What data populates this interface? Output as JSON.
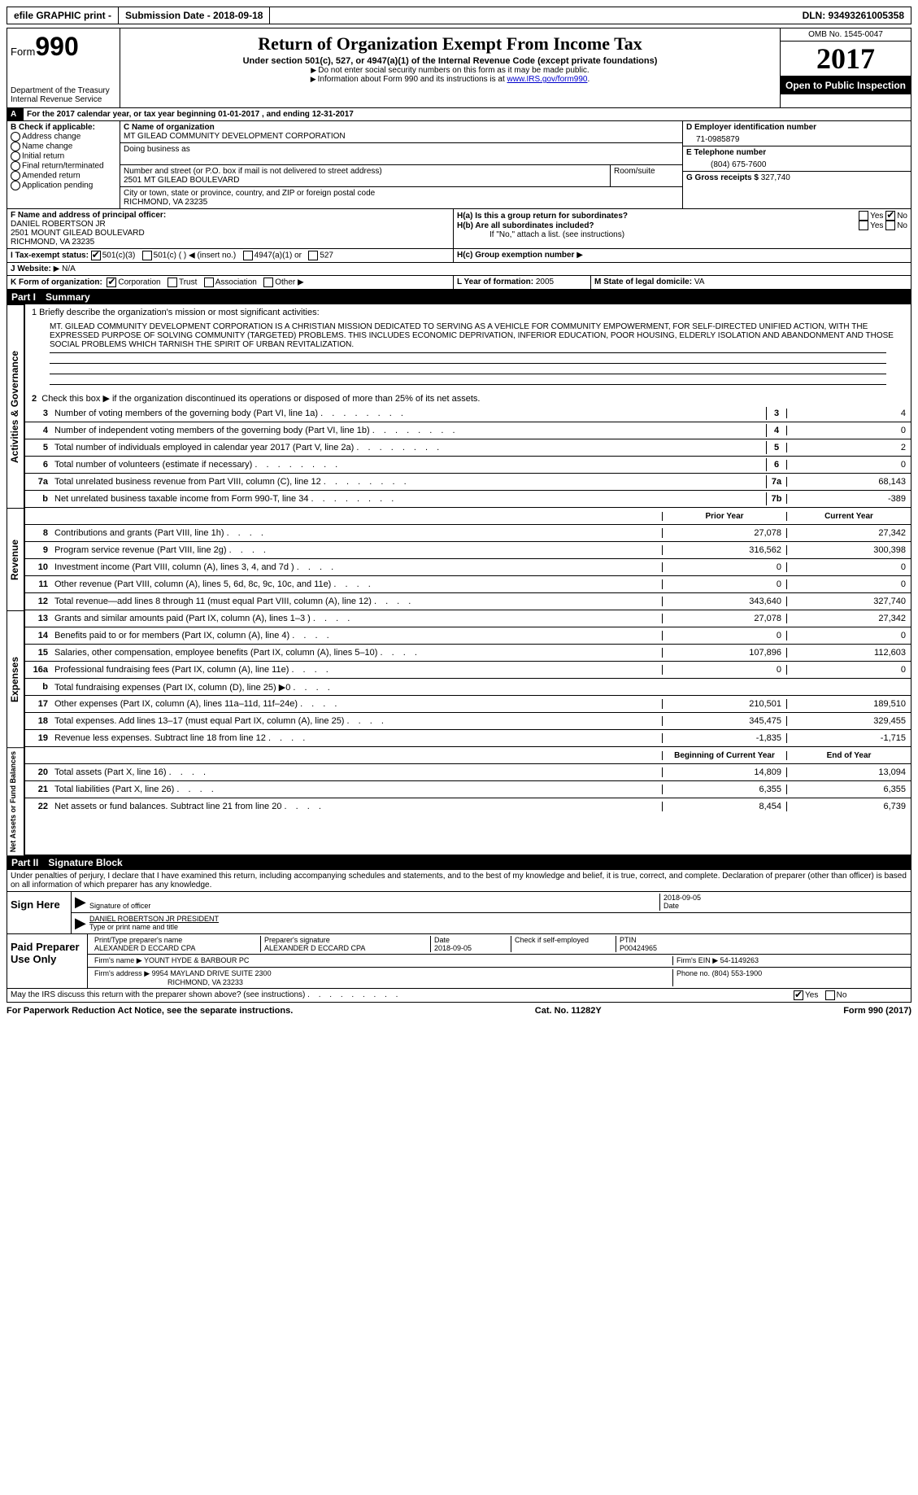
{
  "topbar": {
    "efile": "efile GRAPHIC print -",
    "submission_label": "Submission Date - 2018-09-18",
    "dln": "DLN: 93493261005358"
  },
  "header": {
    "form_label": "Form",
    "form_number": "990",
    "dept": "Department of the Treasury",
    "irs": "Internal Revenue Service",
    "title": "Return of Organization Exempt From Income Tax",
    "subtitle": "Under section 501(c), 527, or 4947(a)(1) of the Internal Revenue Code (except private foundations)",
    "note1": "Do not enter social security numbers on this form as it may be made public.",
    "note2_pre": "Information about Form 990 and its instructions is at ",
    "note2_link": "www.IRS.gov/form990",
    "omb": "OMB No. 1545-0047",
    "year": "2017",
    "open": "Open to Public Inspection"
  },
  "section_a": {
    "line": "For the 2017 calendar year, or tax year beginning 01-01-2017   , and ending 12-31-2017"
  },
  "section_b": {
    "title": "B Check if applicable:",
    "items": [
      "Address change",
      "Name change",
      "Initial return",
      "Final return/terminated",
      "Amended return",
      "Application pending"
    ]
  },
  "section_c": {
    "label_name": "C Name of organization",
    "org_name": "MT GILEAD COMMUNITY DEVELOPMENT CORPORATION",
    "dba": "Doing business as",
    "street_label": "Number and street (or P.O. box if mail is not delivered to street address)",
    "street": "2501 MT GILEAD BOULEVARD",
    "room_label": "Room/suite",
    "city_label": "City or town, state or province, country, and ZIP or foreign postal code",
    "city": "RICHMOND, VA  23235"
  },
  "section_d": {
    "label": "D Employer identification number",
    "value": "71-0985879"
  },
  "section_e": {
    "label": "E Telephone number",
    "value": "(804) 675-7600"
  },
  "section_g": {
    "label": "G Gross receipts $",
    "value": "327,740"
  },
  "section_f": {
    "label": "F  Name and address of principal officer:",
    "name": "DANIEL ROBERTSON JR",
    "addr1": "2501 MOUNT GILEAD BOULEVARD",
    "addr2": "RICHMOND, VA  23235"
  },
  "section_h": {
    "a_label": "H(a)  Is this a group return for subordinates?",
    "b_label": "H(b)  Are all subordinates included?",
    "note": "If \"No,\" attach a list. (see instructions)",
    "c_label": "H(c)  Group exemption number",
    "yes": "Yes",
    "no": "No"
  },
  "section_i": {
    "label": "I  Tax-exempt status:",
    "c3": "501(c)(3)",
    "c": "501(c) (   )",
    "insert": "(insert no.)",
    "a1": "4947(a)(1) or",
    "527": "527"
  },
  "section_j": {
    "label": "J  Website:",
    "value": "N/A"
  },
  "section_k": {
    "label": "K Form of organization:",
    "corp": "Corporation",
    "trust": "Trust",
    "assoc": "Association",
    "other": "Other"
  },
  "section_l": {
    "label": "L Year of formation:",
    "value": "2005"
  },
  "section_m": {
    "label": "M State of legal domicile:",
    "value": "VA"
  },
  "part1": {
    "num": "Part I",
    "title": "Summary"
  },
  "summary": {
    "line1_label": "1  Briefly describe the organization's mission or most significant activities:",
    "mission": "MT. GILEAD COMMUNITY DEVELOPMENT CORPORATION IS A CHRISTIAN MISSION DEDICATED TO SERVING AS A VEHICLE FOR COMMUNITY EMPOWERMENT, FOR SELF-DIRECTED UNIFIED ACTION, WITH THE EXPRESSED PURPOSE OF SOLVING COMMUNITY (TARGETED) PROBLEMS. THIS INCLUDES ECONOMIC DEPRIVATION, INFERIOR EDUCATION, POOR HOUSING, ELDERLY ISOLATION AND ABANDONMENT AND THOSE SOCIAL PROBLEMS WHICH TARNISH THE SPIRIT OF URBAN REVITALIZATION.",
    "line2": "Check this box ▶      if the organization discontinued its operations or disposed of more than 25% of its net assets.",
    "lines_gov": [
      {
        "n": "3",
        "t": "Number of voting members of the governing body (Part VI, line 1a)",
        "box": "3",
        "v": "4"
      },
      {
        "n": "4",
        "t": "Number of independent voting members of the governing body (Part VI, line 1b)",
        "box": "4",
        "v": "0"
      },
      {
        "n": "5",
        "t": "Total number of individuals employed in calendar year 2017 (Part V, line 2a)",
        "box": "5",
        "v": "2"
      },
      {
        "n": "6",
        "t": "Total number of volunteers (estimate if necessary)",
        "box": "6",
        "v": "0"
      },
      {
        "n": "7a",
        "t": "Total unrelated business revenue from Part VIII, column (C), line 12",
        "box": "7a",
        "v": "68,143"
      },
      {
        "n": "b",
        "t": "Net unrelated business taxable income from Form 990-T, line 34",
        "box": "7b",
        "v": "-389"
      }
    ],
    "col_prior": "Prior Year",
    "col_current": "Current Year",
    "revenue": [
      {
        "n": "8",
        "t": "Contributions and grants (Part VIII, line 1h)",
        "p": "27,078",
        "c": "27,342"
      },
      {
        "n": "9",
        "t": "Program service revenue (Part VIII, line 2g)",
        "p": "316,562",
        "c": "300,398"
      },
      {
        "n": "10",
        "t": "Investment income (Part VIII, column (A), lines 3, 4, and 7d )",
        "p": "0",
        "c": "0"
      },
      {
        "n": "11",
        "t": "Other revenue (Part VIII, column (A), lines 5, 6d, 8c, 9c, 10c, and 11e)",
        "p": "0",
        "c": "0"
      },
      {
        "n": "12",
        "t": "Total revenue—add lines 8 through 11 (must equal Part VIII, column (A), line 12)",
        "p": "343,640",
        "c": "327,740"
      }
    ],
    "expenses": [
      {
        "n": "13",
        "t": "Grants and similar amounts paid (Part IX, column (A), lines 1–3 )",
        "p": "27,078",
        "c": "27,342"
      },
      {
        "n": "14",
        "t": "Benefits paid to or for members (Part IX, column (A), line 4)",
        "p": "0",
        "c": "0"
      },
      {
        "n": "15",
        "t": "Salaries, other compensation, employee benefits (Part IX, column (A), lines 5–10)",
        "p": "107,896",
        "c": "112,603"
      },
      {
        "n": "16a",
        "t": "Professional fundraising fees (Part IX, column (A), line 11e)",
        "p": "0",
        "c": "0"
      },
      {
        "n": "b",
        "t": "Total fundraising expenses (Part IX, column (D), line 25) ▶0",
        "p": "",
        "c": "",
        "grey": true
      },
      {
        "n": "17",
        "t": "Other expenses (Part IX, column (A), lines 11a–11d, 11f–24e)",
        "p": "210,501",
        "c": "189,510"
      },
      {
        "n": "18",
        "t": "Total expenses. Add lines 13–17 (must equal Part IX, column (A), line 25)",
        "p": "345,475",
        "c": "329,455"
      },
      {
        "n": "19",
        "t": "Revenue less expenses. Subtract line 18 from line 12",
        "p": "-1,835",
        "c": "-1,715"
      }
    ],
    "col_begin": "Beginning of Current Year",
    "col_end": "End of Year",
    "netassets": [
      {
        "n": "20",
        "t": "Total assets (Part X, line 16)",
        "p": "14,809",
        "c": "13,094"
      },
      {
        "n": "21",
        "t": "Total liabilities (Part X, line 26)",
        "p": "6,355",
        "c": "6,355"
      },
      {
        "n": "22",
        "t": "Net assets or fund balances. Subtract line 21 from line 20",
        "p": "8,454",
        "c": "6,739"
      }
    ]
  },
  "vtabs": {
    "gov": "Activities & Governance",
    "rev": "Revenue",
    "exp": "Expenses",
    "net": "Net Assets or Fund Balances"
  },
  "part2": {
    "num": "Part II",
    "title": "Signature Block"
  },
  "perjury": "Under penalties of perjury, I declare that I have examined this return, including accompanying schedules and statements, and to the best of my knowledge and belief, it is true, correct, and complete. Declaration of preparer (other than officer) is based on all information of which preparer has any knowledge.",
  "sign": {
    "here": "Sign Here",
    "sig_officer": "Signature of officer",
    "date": "Date",
    "date_v": "2018-09-05",
    "name": "DANIEL ROBERTSON JR PRESIDENT",
    "type": "Type or print name and title"
  },
  "preparer": {
    "label": "Paid Preparer Use Only",
    "print_label": "Print/Type preparer's name",
    "print_v": "ALEXANDER D ECCARD CPA",
    "sig_label": "Preparer's signature",
    "sig_v": "ALEXANDER D ECCARD CPA",
    "date_label": "Date",
    "date_v": "2018-09-05",
    "check_label": "Check       if self-employed",
    "ptin_label": "PTIN",
    "ptin_v": "P00424965",
    "firm_name_label": "Firm's name     ▶",
    "firm_name": "YOUNT HYDE & BARBOUR PC",
    "firm_ein_label": "Firm's EIN ▶",
    "firm_ein": "54-1149263",
    "firm_addr_label": "Firm's address ▶",
    "firm_addr1": "9954 MAYLAND DRIVE SUITE 2300",
    "firm_addr2": "RICHMOND, VA  23233",
    "phone_label": "Phone no.",
    "phone": "(804) 553-1900"
  },
  "discuss": {
    "text": "May the IRS discuss this return with the preparer shown above? (see instructions)",
    "yes": "Yes",
    "no": "No"
  },
  "footer": {
    "pra": "For Paperwork Reduction Act Notice, see the separate instructions.",
    "cat": "Cat. No. 11282Y",
    "form": "Form 990 (2017)"
  }
}
